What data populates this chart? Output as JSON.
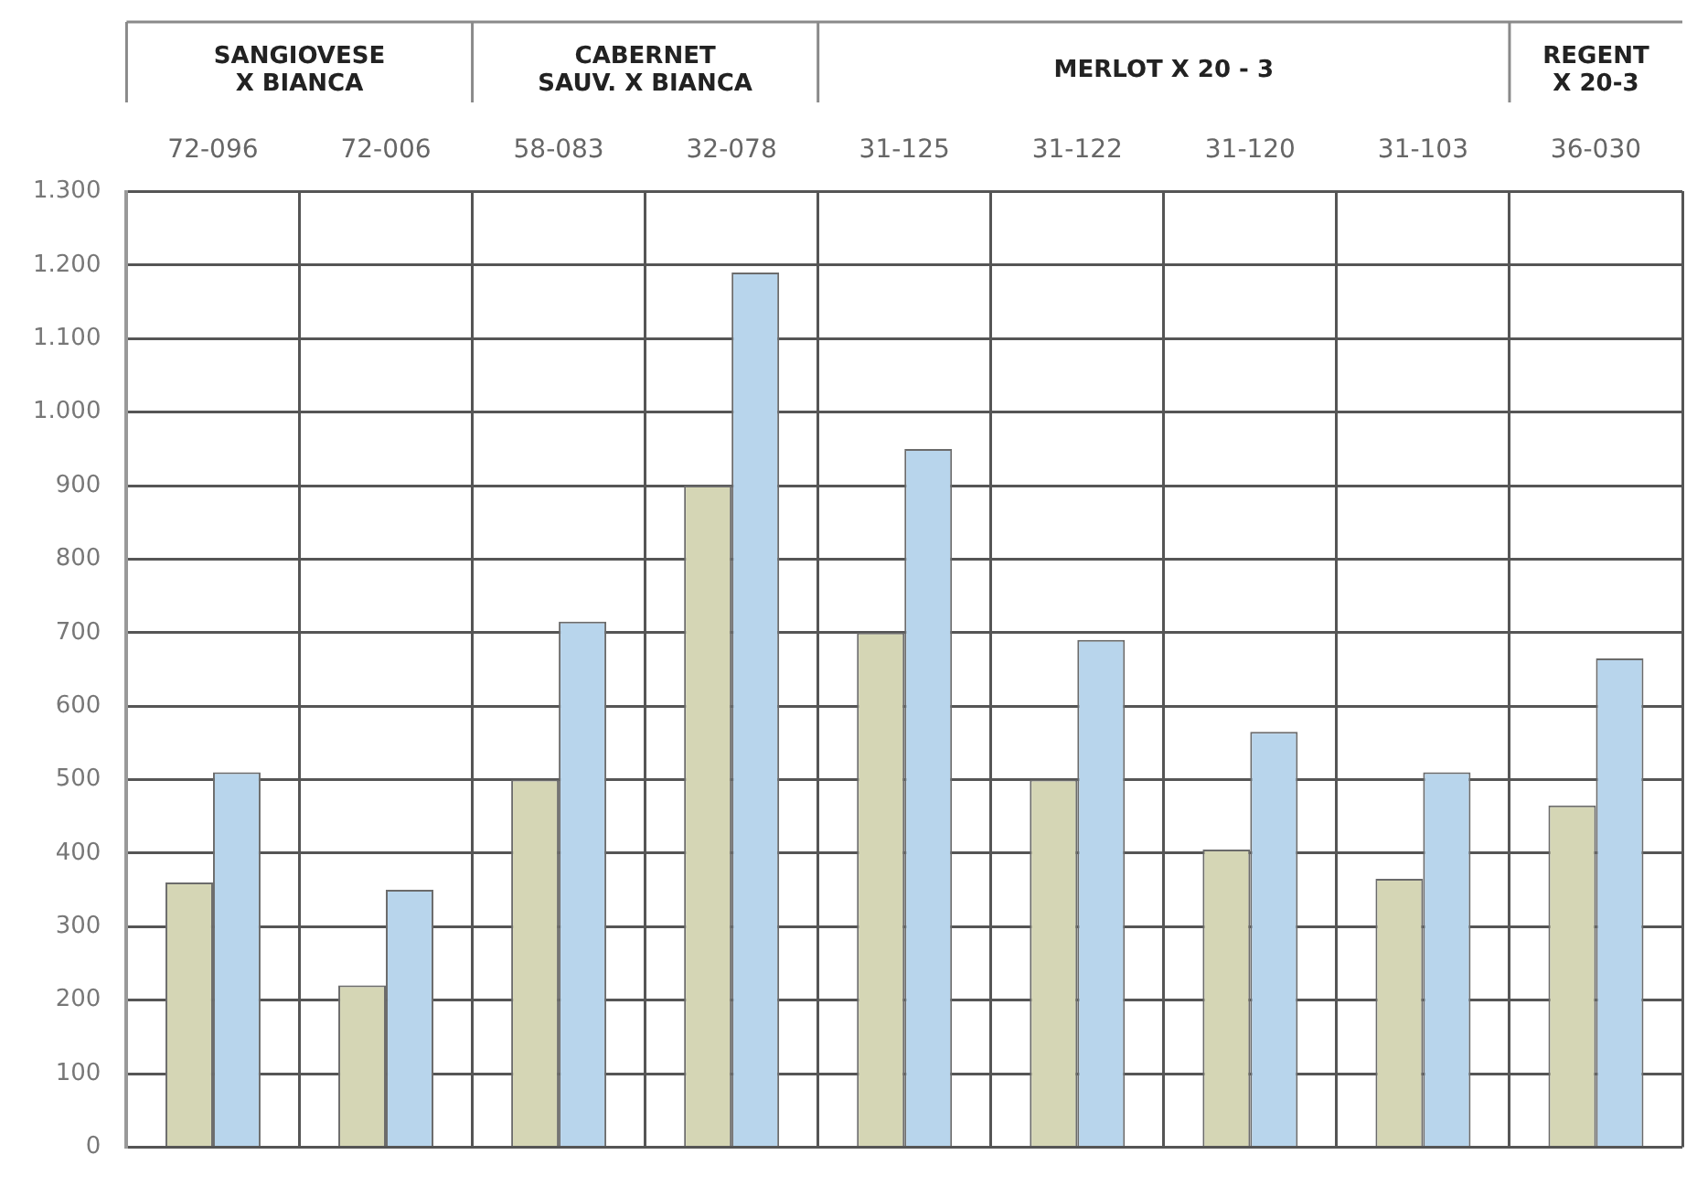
{
  "chart_data": {
    "type": "bar",
    "categories": [
      "72-096",
      "72-006",
      "58-083",
      "32-078",
      "31-125",
      "31-122",
      "31-120",
      "31-103",
      "36-030"
    ],
    "series": [
      {
        "color": "#d5d6b5",
        "values": [
          360,
          220,
          500,
          900,
          700,
          500,
          405,
          365,
          465
        ]
      },
      {
        "color": "#b8d5ec",
        "values": [
          510,
          350,
          715,
          1190,
          950,
          690,
          565,
          510,
          665
        ]
      }
    ],
    "annotations": [
      "SANGIOVESE\nX BIANCA",
      "CABERNET\nSAUV. X BIANCA",
      "MERLOT X 20 - 3",
      "REGENT\nX 20-3"
    ],
    "ylim": [
      0,
      1300
    ],
    "yticks": [
      0,
      100,
      200,
      300,
      400,
      500,
      600,
      700,
      800,
      900,
      {
        "value": 1000,
        "label": "1.000"
      },
      {
        "value": 1100,
        "label": "1.100"
      },
      {
        "value": 1200,
        "label": "1.200"
      },
      {
        "value": 1300,
        "label": "1.300"
      }
    ],
    "grid": true,
    "legend": false
  }
}
